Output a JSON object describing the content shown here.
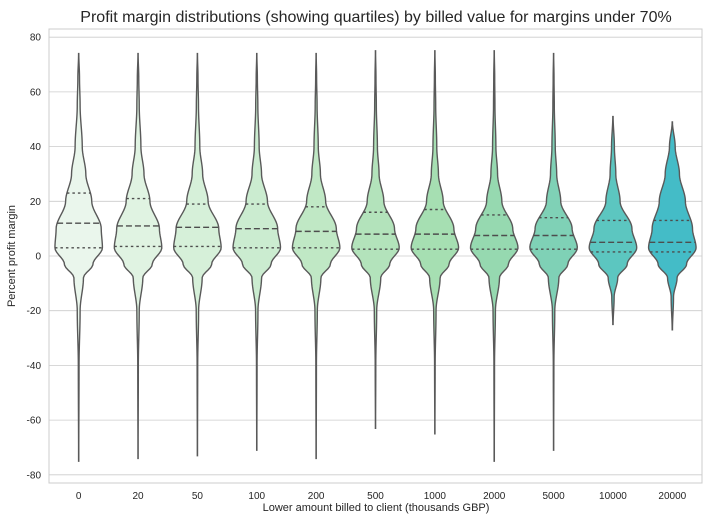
{
  "chart_data": {
    "type": "violin",
    "title": "Profit margin distributions (showing quartiles) by billed value for margins under 70%",
    "xlabel": "Lower amount billed to client (thousands GBP)",
    "ylabel": "Percent profit margin",
    "ylim": [
      -83,
      83
    ],
    "yticks": [
      80,
      60,
      40,
      20,
      0,
      -20,
      -40,
      -60,
      -80
    ],
    "grid": true,
    "legend": "none",
    "categories": [
      "0",
      "20",
      "50",
      "100",
      "200",
      "500",
      "1000",
      "2000",
      "5000",
      "10000",
      "20000"
    ],
    "colors": [
      "#eaf6ec",
      "#e0f3e2",
      "#d6f0d9",
      "#cbecd0",
      "#c0e8c5",
      "#b3e3bb",
      "#a6dfb2",
      "#96d9b0",
      "#7fd1b6",
      "#5cc6c0",
      "#44bcc7"
    ],
    "series": [
      {
        "min": -75,
        "max": 74,
        "q1": 3,
        "median": 12,
        "q3": 23,
        "profile": [
          [
            -75,
            0.003
          ],
          [
            -40,
            0.015
          ],
          [
            -20,
            0.06
          ],
          [
            -8,
            0.2
          ],
          [
            -3,
            0.6
          ],
          [
            3,
            1
          ],
          [
            10,
            0.95
          ],
          [
            20,
            0.55
          ],
          [
            30,
            0.3
          ],
          [
            40,
            0.15
          ],
          [
            55,
            0.06
          ],
          [
            65,
            0.035
          ],
          [
            74,
            0.004
          ]
        ]
      },
      {
        "min": -74,
        "max": 74,
        "q1": 3.5,
        "median": 11,
        "q3": 21,
        "profile": [
          [
            -74,
            0.003
          ],
          [
            -40,
            0.012
          ],
          [
            -20,
            0.05
          ],
          [
            -8,
            0.2
          ],
          [
            -3,
            0.6
          ],
          [
            3,
            1
          ],
          [
            10,
            0.9
          ],
          [
            20,
            0.5
          ],
          [
            30,
            0.25
          ],
          [
            40,
            0.12
          ],
          [
            55,
            0.05
          ],
          [
            65,
            0.03
          ],
          [
            74,
            0.003
          ]
        ]
      },
      {
        "min": -73,
        "max": 74,
        "q1": 3.5,
        "median": 10.5,
        "q3": 19,
        "profile": [
          [
            -73,
            0.003
          ],
          [
            -40,
            0.012
          ],
          [
            -20,
            0.05
          ],
          [
            -8,
            0.2
          ],
          [
            -3,
            0.6
          ],
          [
            3,
            1
          ],
          [
            10,
            0.9
          ],
          [
            20,
            0.45
          ],
          [
            30,
            0.22
          ],
          [
            40,
            0.1
          ],
          [
            55,
            0.045
          ],
          [
            65,
            0.025
          ],
          [
            74,
            0.003
          ]
        ]
      },
      {
        "min": -71,
        "max": 74,
        "q1": 3,
        "median": 10,
        "q3": 19,
        "profile": [
          [
            -71,
            0.003
          ],
          [
            -40,
            0.012
          ],
          [
            -20,
            0.05
          ],
          [
            -8,
            0.2
          ],
          [
            -3,
            0.6
          ],
          [
            3,
            1
          ],
          [
            10,
            0.88
          ],
          [
            20,
            0.45
          ],
          [
            30,
            0.2
          ],
          [
            40,
            0.1
          ],
          [
            55,
            0.045
          ],
          [
            65,
            0.025
          ],
          [
            74,
            0.003
          ]
        ]
      },
      {
        "min": -74,
        "max": 74,
        "q1": 3,
        "median": 9,
        "q3": 18,
        "profile": [
          [
            -74,
            0.003
          ],
          [
            -40,
            0.012
          ],
          [
            -20,
            0.05
          ],
          [
            -8,
            0.2
          ],
          [
            -3,
            0.6
          ],
          [
            3,
            1
          ],
          [
            10,
            0.85
          ],
          [
            20,
            0.4
          ],
          [
            30,
            0.18
          ],
          [
            40,
            0.09
          ],
          [
            55,
            0.04
          ],
          [
            65,
            0.02
          ],
          [
            74,
            0.003
          ]
        ]
      },
      {
        "min": -63,
        "max": 75,
        "q1": 2.5,
        "median": 8,
        "q3": 16,
        "profile": [
          [
            -63,
            0.003
          ],
          [
            -40,
            0.012
          ],
          [
            -20,
            0.05
          ],
          [
            -8,
            0.22
          ],
          [
            -3,
            0.6
          ],
          [
            3,
            1
          ],
          [
            10,
            0.8
          ],
          [
            20,
            0.35
          ],
          [
            30,
            0.15
          ],
          [
            40,
            0.08
          ],
          [
            55,
            0.035
          ],
          [
            65,
            0.02
          ],
          [
            75,
            0.003
          ]
        ]
      },
      {
        "min": -65,
        "max": 75,
        "q1": 2.5,
        "median": 8,
        "q3": 17,
        "profile": [
          [
            -65,
            0.003
          ],
          [
            -40,
            0.012
          ],
          [
            -20,
            0.05
          ],
          [
            -8,
            0.22
          ],
          [
            -3,
            0.6
          ],
          [
            3,
            1
          ],
          [
            10,
            0.8
          ],
          [
            20,
            0.35
          ],
          [
            30,
            0.15
          ],
          [
            40,
            0.08
          ],
          [
            55,
            0.035
          ],
          [
            65,
            0.02
          ],
          [
            75,
            0.003
          ]
        ]
      },
      {
        "min": -75,
        "max": 75,
        "q1": 2.5,
        "median": 7.5,
        "q3": 15,
        "profile": [
          [
            -75,
            0.003
          ],
          [
            -40,
            0.012
          ],
          [
            -20,
            0.05
          ],
          [
            -8,
            0.22
          ],
          [
            -3,
            0.6
          ],
          [
            3,
            1
          ],
          [
            10,
            0.78
          ],
          [
            20,
            0.32
          ],
          [
            30,
            0.14
          ],
          [
            40,
            0.07
          ],
          [
            55,
            0.03
          ],
          [
            65,
            0.02
          ],
          [
            75,
            0.003
          ]
        ]
      },
      {
        "min": -71,
        "max": 74,
        "q1": 2.5,
        "median": 7.5,
        "q3": 14,
        "profile": [
          [
            -71,
            0.003
          ],
          [
            -40,
            0.012
          ],
          [
            -20,
            0.05
          ],
          [
            -8,
            0.22
          ],
          [
            -3,
            0.6
          ],
          [
            3,
            1
          ],
          [
            10,
            0.78
          ],
          [
            20,
            0.3
          ],
          [
            30,
            0.13
          ],
          [
            40,
            0.07
          ],
          [
            55,
            0.03
          ],
          [
            65,
            0.018
          ],
          [
            74,
            0.003
          ]
        ]
      },
      {
        "min": -25,
        "max": 51,
        "q1": 1.5,
        "median": 5,
        "q3": 13,
        "profile": [
          [
            -25,
            0.006
          ],
          [
            -15,
            0.05
          ],
          [
            -8,
            0.2
          ],
          [
            -3,
            0.6
          ],
          [
            3,
            1
          ],
          [
            10,
            0.8
          ],
          [
            20,
            0.3
          ],
          [
            30,
            0.12
          ],
          [
            40,
            0.06
          ],
          [
            51,
            0.006
          ]
        ]
      },
      {
        "min": -27,
        "max": 49,
        "q1": 1.5,
        "median": 5,
        "q3": 13,
        "profile": [
          [
            -27,
            0.006
          ],
          [
            -15,
            0.05
          ],
          [
            -8,
            0.2
          ],
          [
            -3,
            0.6
          ],
          [
            3,
            1
          ],
          [
            10,
            0.85
          ],
          [
            20,
            0.55
          ],
          [
            30,
            0.3
          ],
          [
            40,
            0.12
          ],
          [
            49,
            0.006
          ]
        ]
      }
    ]
  }
}
